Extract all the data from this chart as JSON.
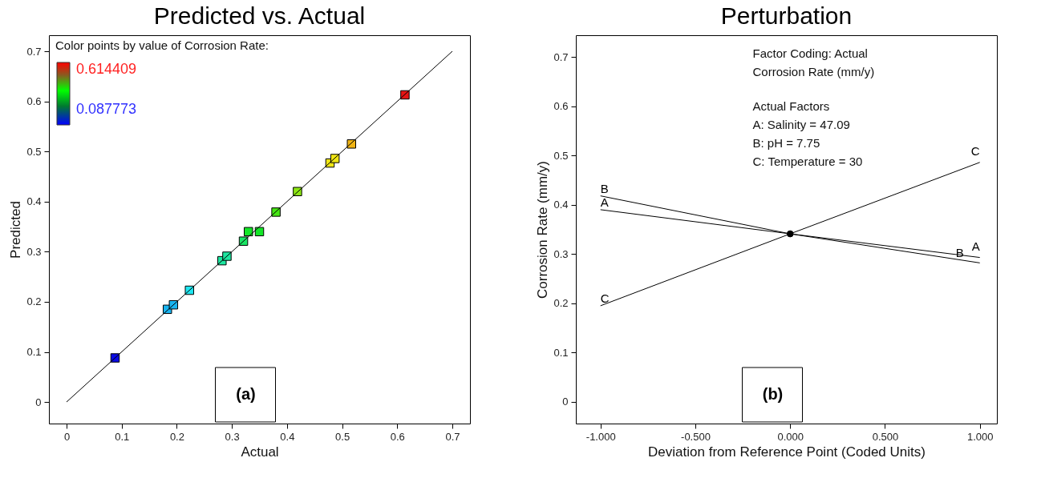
{
  "chart_data": [
    {
      "type": "scatter",
      "title": "Predicted vs. Actual",
      "xlabel": "Actual",
      "ylabel": "Predicted",
      "xlim": [
        -0.032,
        0.732
      ],
      "ylim": [
        -0.043,
        0.732
      ],
      "xticks": [
        0,
        0.1,
        0.2,
        0.3,
        0.4,
        0.5,
        0.6,
        0.7
      ],
      "yticks": [
        0,
        0.1,
        0.2,
        0.3,
        0.4,
        0.5,
        0.6,
        0.7
      ],
      "grid": false,
      "annotations": [
        "Color points by value of Corrosion Rate:",
        "0.614409",
        "0.087773",
        "(a)"
      ],
      "series": [
        {
          "marker": "square",
          "x": [
            0.088,
            0.183,
            0.194,
            0.223,
            0.282,
            0.291,
            0.321,
            0.33,
            0.35,
            0.38,
            0.419,
            0.478,
            0.487,
            0.517,
            0.614
          ],
          "values": [
            0.088,
            0.185,
            0.194,
            0.223,
            0.282,
            0.291,
            0.321,
            0.34,
            0.34,
            0.379,
            0.42,
            0.477,
            0.486,
            0.515,
            0.613
          ],
          "colors": [
            "#0a0ae6",
            "#19b4f0",
            "#19b4f0",
            "#1ee6f0",
            "#1ee6a0",
            "#1ee6a0",
            "#19e664",
            "#14e628",
            "#14e628",
            "#46e614",
            "#8ce614",
            "#f0e614",
            "#f0e614",
            "#f0b414",
            "#e61414"
          ]
        },
        {
          "type": "line",
          "color": "#000000",
          "x": [
            0,
            0.7
          ],
          "values": [
            0,
            0.7
          ]
        }
      ]
    },
    {
      "type": "line",
      "title": "Perturbation",
      "xlabel": "Deviation from Reference Point (Coded Units)",
      "ylabel": "Corrosion Rate (mm/y)",
      "xlim": [
        -1.13,
        1.09
      ],
      "ylim": [
        -0.044,
        0.744
      ],
      "xticks": [
        {
          "value": -1,
          "label": "-1.000"
        },
        {
          "value": -0.5,
          "label": "-0.500"
        },
        {
          "value": 0,
          "label": "0.000"
        },
        {
          "value": 0.5,
          "label": "0.500"
        },
        {
          "value": 1,
          "label": "1.000"
        }
      ],
      "yticks": [
        0,
        0.1,
        0.2,
        0.3,
        0.4,
        0.5,
        0.6,
        0.7
      ],
      "grid": false,
      "annotations": [
        "Factor Coding: Actual",
        "Corrosion Rate (mm/y)",
        "Actual Factors",
        "A: Salinity = 47.09",
        "B: pH = 7.75",
        "C: Temperature = 30",
        "(b)"
      ],
      "x": [
        -1,
        0,
        1
      ],
      "series": [
        {
          "name": "A",
          "color": "#000000",
          "values": [
            0.39,
            0.341,
            0.293
          ]
        },
        {
          "name": "B",
          "color": "#000000",
          "values": [
            0.418,
            0.341,
            0.282
          ]
        },
        {
          "name": "C",
          "color": "#000000",
          "values": [
            0.195,
            0.341,
            0.486
          ]
        },
        {
          "type": "scatter",
          "marker": "circle",
          "color": "#000000",
          "x": [
            0
          ],
          "values": [
            0.341
          ]
        }
      ]
    }
  ]
}
